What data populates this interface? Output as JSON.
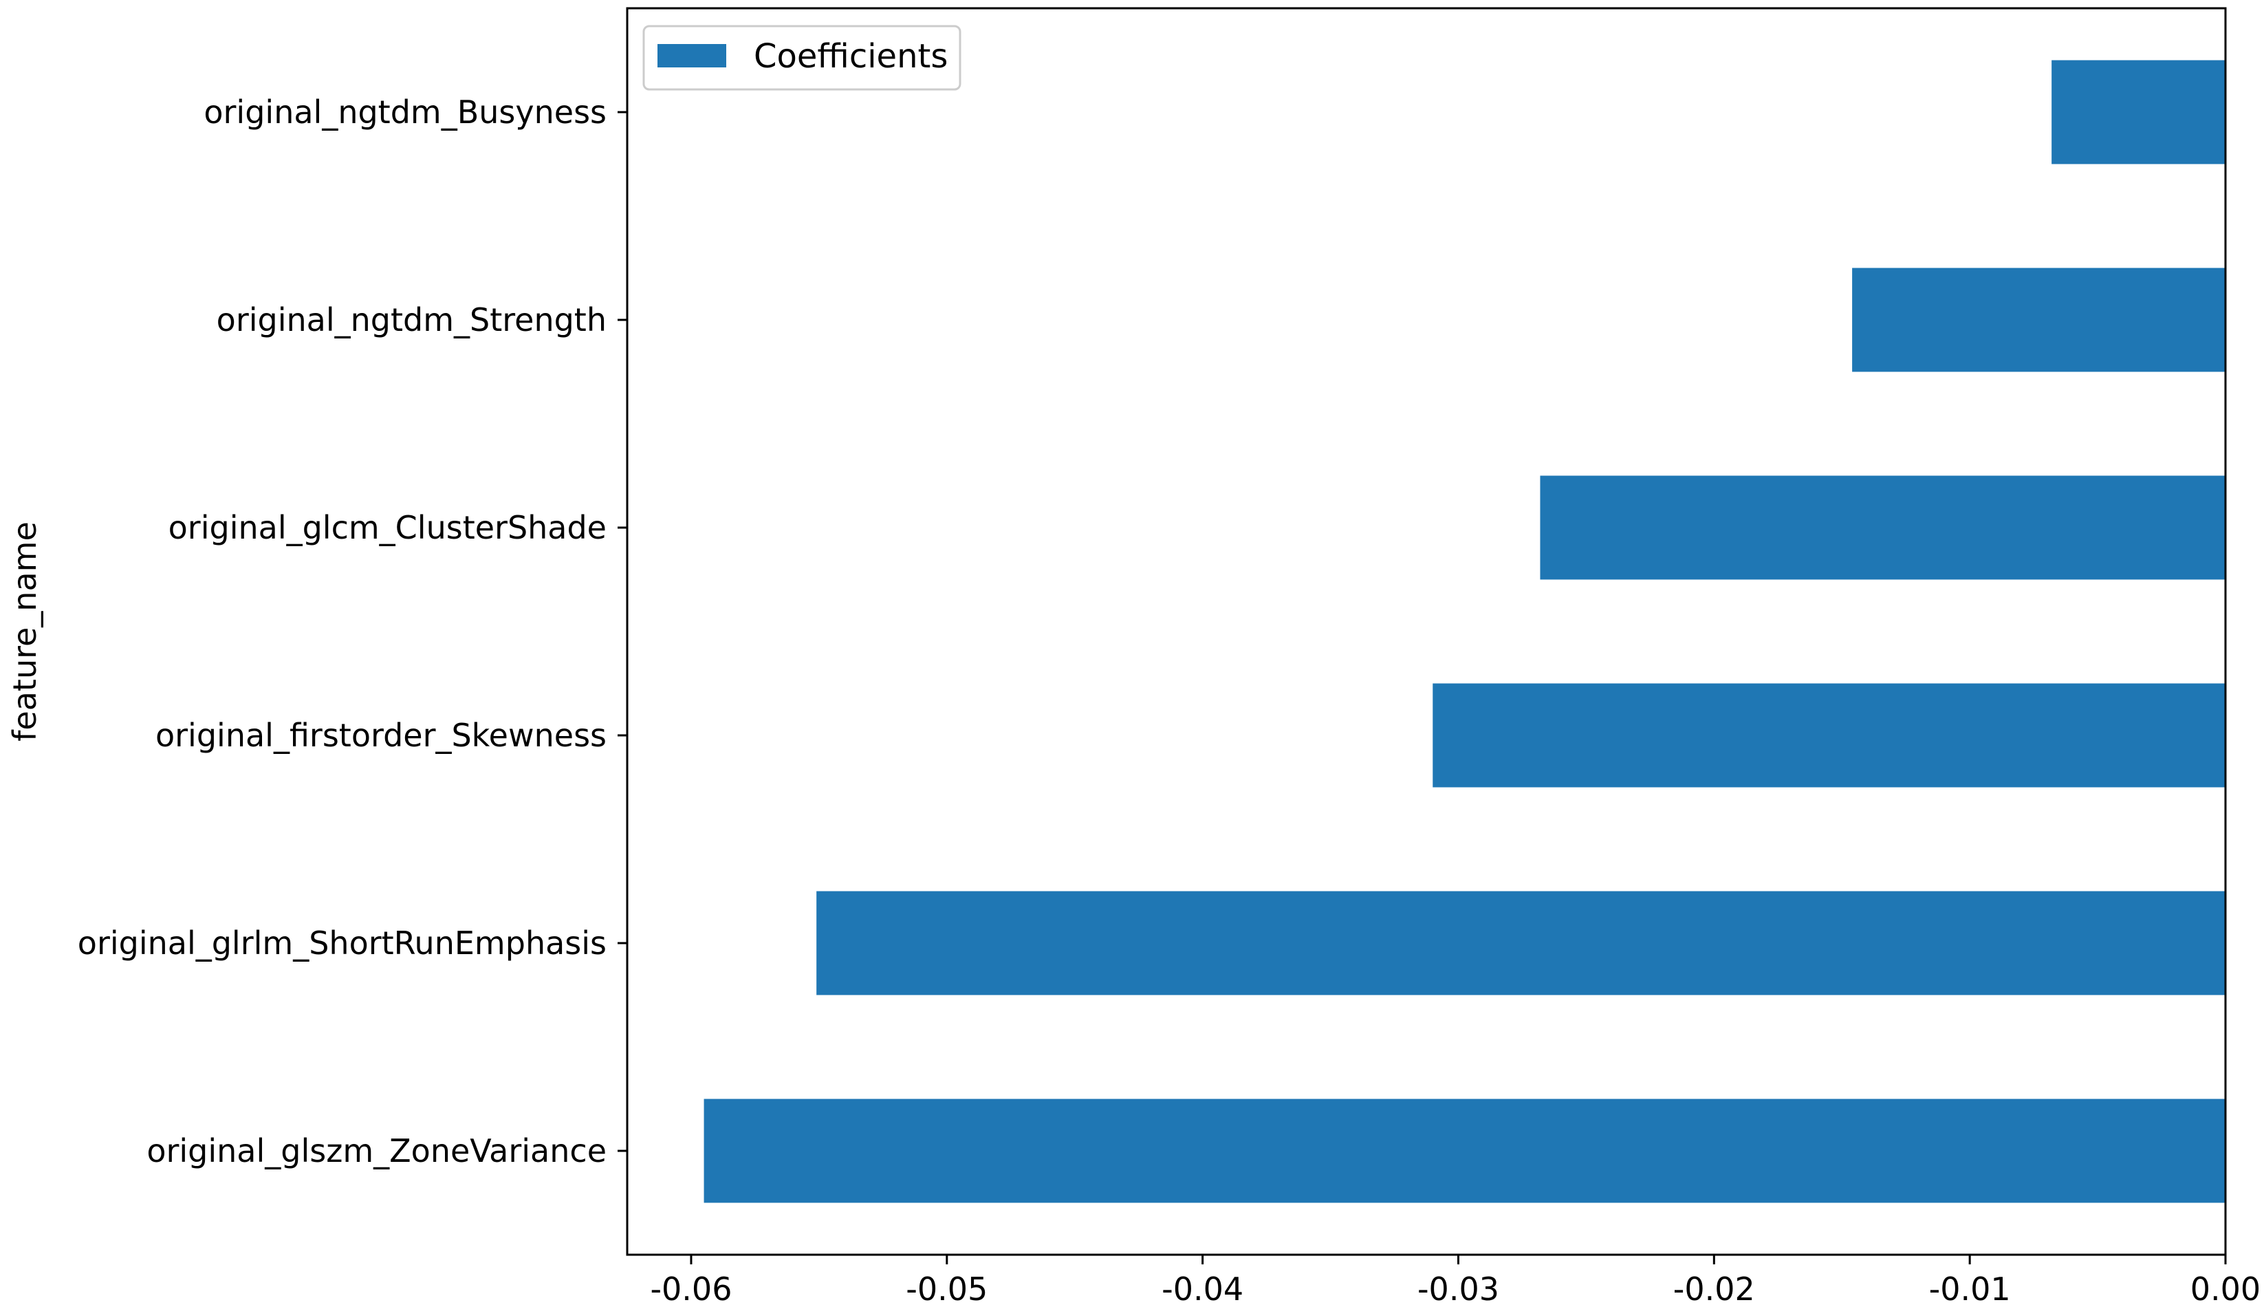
{
  "chart_data": {
    "type": "bar",
    "orientation": "horizontal",
    "categories": [
      "original_glszm_ZoneVariance",
      "original_glrlm_ShortRunEmphasis",
      "original_firstorder_Skewness",
      "original_glcm_ClusterShade",
      "original_ngtdm_Strength",
      "original_ngtdm_Busyness"
    ],
    "series": [
      {
        "name": "Coefficients",
        "values": [
          -0.0595,
          -0.0551,
          -0.031,
          -0.0268,
          -0.0146,
          -0.0068
        ]
      }
    ],
    "xlim": [
      -0.0625,
      0.0
    ],
    "xticks": [
      -0.06,
      -0.05,
      -0.04,
      -0.03,
      -0.02,
      -0.01,
      0.0
    ],
    "xtick_labels": [
      "-0.06",
      "-0.05",
      "-0.04",
      "-0.03",
      "-0.02",
      "-0.01",
      "0.00"
    ],
    "xlabel": "",
    "ylabel": "feature_name",
    "title": "",
    "grid": false,
    "legend": {
      "position": "top-left",
      "entries": [
        "Coefficients"
      ]
    },
    "colors": {
      "bar": "#1f77b4",
      "axis": "#000000",
      "legend_border": "#cccccc"
    }
  }
}
